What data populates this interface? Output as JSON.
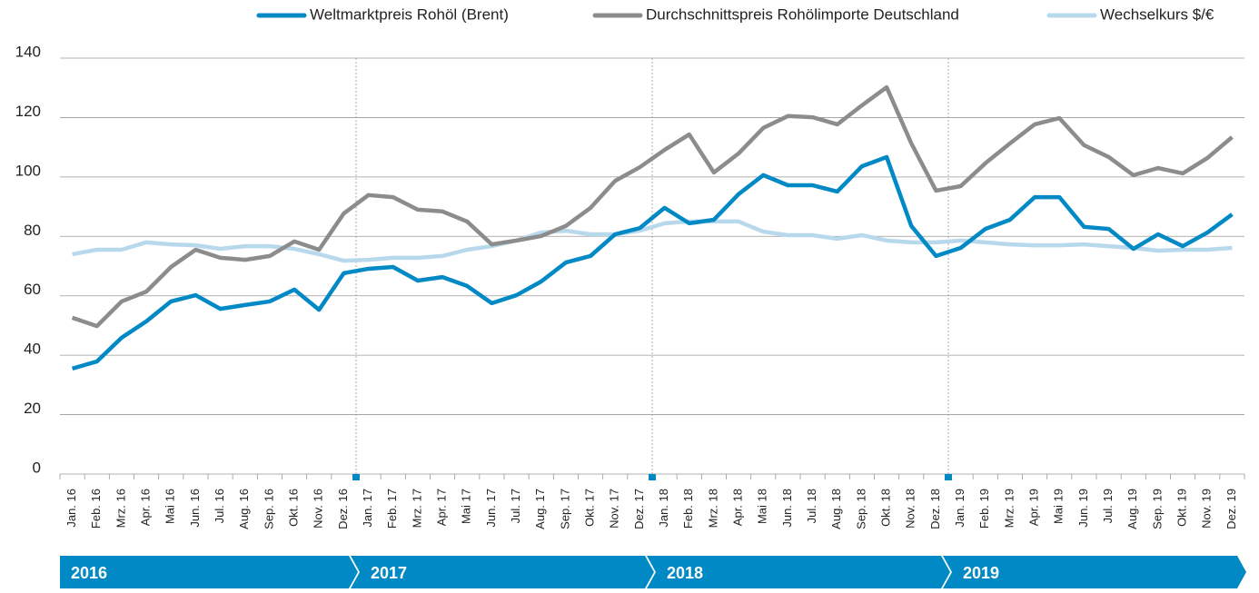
{
  "chart_data": {
    "type": "line",
    "categories": [
      "Jan. 16",
      "Feb. 16",
      "Mrz. 16",
      "Apr. 16",
      "Mai 16",
      "Jun. 16",
      "Jul. 16",
      "Aug. 16",
      "Sep. 16",
      "Okt. 16",
      "Nov. 16",
      "Dez. 16",
      "Jan. 17",
      "Feb. 17",
      "Mrz. 17",
      "Apr. 17",
      "Mai 17",
      "Jun. 17",
      "Jul. 17",
      "Aug. 17",
      "Sep. 17",
      "Okt. 17",
      "Nov. 17",
      "Dez. 17",
      "Jan. 18",
      "Feb. 18",
      "Mrz. 18",
      "Apr. 18",
      "Mai 18",
      "Jun. 18",
      "Jul. 18",
      "Aug. 18",
      "Sep. 18",
      "Okt. 18",
      "Nov. 18",
      "Dez. 18",
      "Jan. 19",
      "Feb. 19",
      "Mrz. 19",
      "Apr. 19",
      "Mai 19",
      "Jun. 19",
      "Jul. 19",
      "Aug. 19",
      "Sep. 19",
      "Okt. 19",
      "Nov. 19",
      "Dez. 19"
    ],
    "series": [
      {
        "name": "Weltmarktpreis Rohöl (Brent)",
        "color": "#0089c4",
        "values": [
          35.5,
          37.9,
          45.9,
          51.4,
          58.1,
          60.2,
          55.6,
          56.9,
          58.1,
          62.1,
          55.3,
          67.6,
          69.1,
          69.7,
          65.1,
          66.3,
          63.3,
          57.5,
          60.2,
          64.8,
          71.2,
          73.4,
          80.7,
          82.8,
          89.6,
          84.4,
          85.6,
          94.2,
          100.6,
          97.2,
          97.2,
          95.1,
          103.6,
          106.7,
          83.5,
          73.4,
          76.1,
          82.5,
          85.6,
          93.2,
          93.2,
          83.2,
          82.5,
          75.8,
          80.7,
          76.7,
          81.3,
          87.4
        ]
      },
      {
        "name": "Durchschnittspreis Rohölimporte Deutschland",
        "color": "#8c8c8c",
        "values": [
          52.6,
          49.8,
          58.1,
          61.4,
          69.7,
          75.5,
          72.8,
          72.1,
          73.4,
          78.3,
          75.5,
          87.7,
          93.9,
          93.2,
          89.0,
          88.4,
          85.0,
          77.3,
          78.6,
          80.1,
          83.5,
          89.6,
          98.7,
          103.3,
          109.1,
          114.3,
          101.5,
          107.9,
          116.5,
          120.5,
          120.1,
          117.7,
          124.1,
          130.2,
          111.3,
          95.4,
          96.9,
          104.6,
          111.3,
          117.7,
          119.8,
          110.7,
          106.7,
          100.6,
          103.0,
          101.2,
          106.4,
          113.4
        ]
      },
      {
        "name": "Wechselkurs $/€",
        "color": "#b8d9ec",
        "values": [
          74.0,
          75.5,
          75.5,
          78.0,
          77.3,
          77.0,
          75.8,
          76.7,
          76.7,
          75.8,
          74.0,
          71.8,
          72.1,
          72.8,
          72.8,
          73.4,
          75.5,
          76.7,
          78.6,
          81.3,
          81.9,
          80.7,
          80.7,
          81.9,
          84.4,
          85.0,
          85.0,
          85.0,
          81.6,
          80.4,
          80.4,
          79.2,
          80.4,
          78.6,
          78.0,
          78.0,
          78.6,
          78.0,
          77.3,
          77.0,
          77.0,
          77.3,
          76.7,
          76.1,
          75.2,
          75.5,
          75.5,
          76.1
        ]
      }
    ],
    "ylim": [
      0,
      140
    ],
    "yticks": [
      0,
      20,
      40,
      60,
      80,
      100,
      120,
      140
    ],
    "grid": true,
    "years": [
      "2016",
      "2017",
      "2018",
      "2019"
    ],
    "banner_color": "#0089c4",
    "legend": "top-right"
  }
}
